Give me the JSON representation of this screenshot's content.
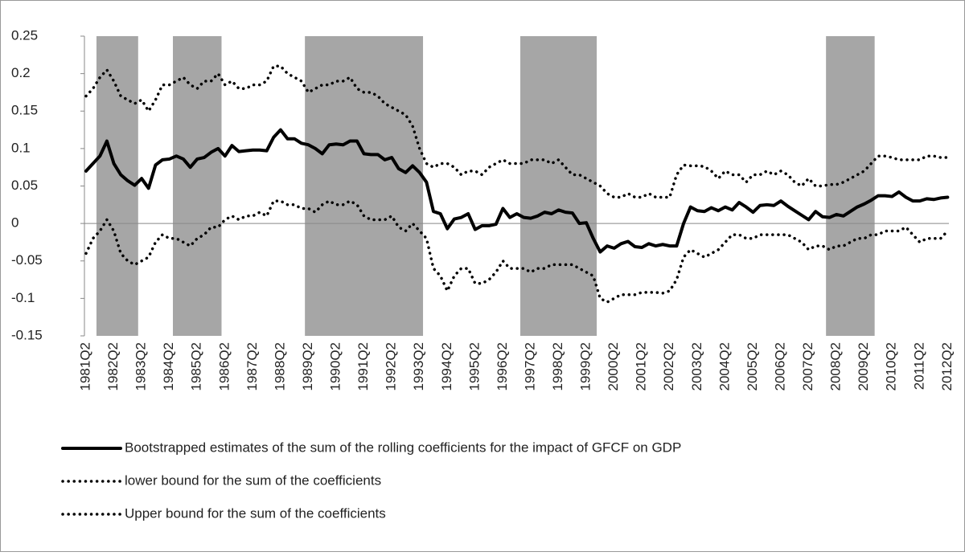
{
  "chart_data": {
    "type": "line",
    "categories": [
      "1981Q2",
      null,
      null,
      null,
      "1982Q2",
      null,
      null,
      null,
      "1983Q2",
      null,
      null,
      null,
      "1984Q2",
      null,
      null,
      null,
      "1985Q2",
      null,
      null,
      null,
      "1986Q2",
      null,
      null,
      null,
      "1987Q2",
      null,
      null,
      null,
      "1988Q2",
      null,
      null,
      null,
      "1989Q2",
      null,
      null,
      null,
      "1990Q2",
      null,
      null,
      null,
      "1991Q2",
      null,
      null,
      null,
      "1992Q2",
      null,
      null,
      null,
      "1993Q2",
      null,
      null,
      null,
      "1994Q2",
      null,
      null,
      null,
      "1995Q2",
      null,
      null,
      null,
      "1996Q2",
      null,
      null,
      null,
      "1997Q2",
      null,
      null,
      null,
      "1998Q2",
      null,
      null,
      null,
      "1999Q2",
      null,
      null,
      null,
      "2000Q2",
      null,
      null,
      null,
      "2001Q2",
      null,
      null,
      null,
      "2002Q2",
      null,
      null,
      null,
      "2003Q2",
      null,
      null,
      null,
      "2004Q2",
      null,
      null,
      null,
      "2005Q2",
      null,
      null,
      null,
      "2006Q2",
      null,
      null,
      null,
      "2007Q2",
      null,
      null,
      null,
      "2008Q2",
      null,
      null,
      null,
      "2009Q2",
      null,
      null,
      null,
      "2010Q2",
      null,
      null,
      null,
      "2011Q2",
      null,
      null,
      null,
      "2012Q2"
    ],
    "series": [
      {
        "name": "Bootstrapped estimates of the sum of the rolling coefficients for the impact of GFCF on GDP",
        "color": "#000000",
        "style": "solid",
        "values": [
          0.07,
          0.08,
          0.09,
          0.11,
          0.08,
          0.065,
          0.057,
          0.051,
          0.06,
          0.047,
          0.078,
          0.085,
          0.086,
          0.09,
          0.086,
          0.075,
          0.086,
          0.088,
          0.095,
          0.1,
          0.09,
          0.104,
          0.096,
          0.097,
          0.098,
          0.098,
          0.097,
          0.115,
          0.125,
          0.113,
          0.113,
          0.107,
          0.105,
          0.1,
          0.093,
          0.105,
          0.106,
          0.105,
          0.11,
          0.11,
          0.093,
          0.092,
          0.092,
          0.085,
          0.088,
          0.073,
          0.068,
          0.077,
          0.068,
          0.055,
          0.016,
          0.013,
          -0.007,
          0.006,
          0.008,
          0.013,
          -0.008,
          -0.003,
          -0.003,
          -0.001,
          0.02,
          0.008,
          0.013,
          0.008,
          0.007,
          0.01,
          0.015,
          0.013,
          0.018,
          0.015,
          0.014,
          0,
          0.001,
          -0.02,
          -0.038,
          -0.03,
          -0.033,
          -0.027,
          -0.024,
          -0.031,
          -0.032,
          -0.027,
          -0.03,
          -0.028,
          -0.03,
          -0.03,
          0,
          0.022,
          0.017,
          0.016,
          0.021,
          0.017,
          0.022,
          0.018,
          0.028,
          0.022,
          0.015,
          0.024,
          0.025,
          0.024,
          0.03,
          0.023,
          0.017,
          0.011,
          0.005,
          0.016,
          0.009,
          0.008,
          0.012,
          0.01,
          0.016,
          0.022,
          0.026,
          0.031,
          0.037,
          0.037,
          0.036,
          0.042,
          0.035,
          0.03,
          0.03,
          0.033,
          0.032,
          0.034,
          0.035
        ]
      },
      {
        "name": "lower bound for the sum of the coefficients",
        "color": "#000000",
        "style": "dotted",
        "values": [
          -0.04,
          -0.02,
          -0.01,
          0.005,
          -0.01,
          -0.04,
          -0.05,
          -0.055,
          -0.05,
          -0.045,
          -0.025,
          -0.015,
          -0.02,
          -0.02,
          -0.025,
          -0.03,
          -0.02,
          -0.015,
          -0.005,
          -0.005,
          0.005,
          0.01,
          0.005,
          0.01,
          0.01,
          0.015,
          0.01,
          0.03,
          0.03,
          0.025,
          0.025,
          0.02,
          0.02,
          0.015,
          0.025,
          0.03,
          0.025,
          0.025,
          0.03,
          0.025,
          0.01,
          0.005,
          0.005,
          0.005,
          0.01,
          -0.005,
          -0.01,
          0,
          -0.01,
          -0.02,
          -0.06,
          -0.07,
          -0.09,
          -0.07,
          -0.06,
          -0.06,
          -0.08,
          -0.08,
          -0.075,
          -0.065,
          -0.05,
          -0.06,
          -0.06,
          -0.06,
          -0.065,
          -0.06,
          -0.06,
          -0.055,
          -0.055,
          -0.055,
          -0.055,
          -0.06,
          -0.065,
          -0.07,
          -0.1,
          -0.105,
          -0.1,
          -0.095,
          -0.095,
          -0.095,
          -0.092,
          -0.092,
          -0.092,
          -0.093,
          -0.09,
          -0.075,
          -0.045,
          -0.035,
          -0.04,
          -0.045,
          -0.04,
          -0.035,
          -0.025,
          -0.015,
          -0.015,
          -0.02,
          -0.02,
          -0.015,
          -0.015,
          -0.015,
          -0.015,
          -0.015,
          -0.02,
          -0.025,
          -0.035,
          -0.03,
          -0.03,
          -0.035,
          -0.03,
          -0.03,
          -0.025,
          -0.02,
          -0.02,
          -0.015,
          -0.015,
          -0.01,
          -0.01,
          -0.01,
          -0.005,
          -0.015,
          -0.025,
          -0.02,
          -0.02,
          -0.02,
          -0.01
        ]
      },
      {
        "name": "Upper bound for the sum of the coefficients",
        "color": "#000000",
        "style": "dotted",
        "values": [
          0.17,
          0.18,
          0.195,
          0.205,
          0.19,
          0.17,
          0.165,
          0.16,
          0.165,
          0.15,
          0.165,
          0.185,
          0.185,
          0.19,
          0.195,
          0.185,
          0.18,
          0.19,
          0.19,
          0.2,
          0.185,
          0.19,
          0.18,
          0.18,
          0.185,
          0.185,
          0.19,
          0.21,
          0.21,
          0.2,
          0.195,
          0.19,
          0.175,
          0.18,
          0.185,
          0.185,
          0.19,
          0.19,
          0.195,
          0.18,
          0.175,
          0.175,
          0.17,
          0.16,
          0.155,
          0.15,
          0.145,
          0.13,
          0.1,
          0.08,
          0.075,
          0.08,
          0.08,
          0.075,
          0.065,
          0.07,
          0.07,
          0.065,
          0.075,
          0.08,
          0.085,
          0.08,
          0.08,
          0.08,
          0.085,
          0.085,
          0.085,
          0.08,
          0.085,
          0.075,
          0.065,
          0.065,
          0.06,
          0.055,
          0.05,
          0.04,
          0.035,
          0.035,
          0.04,
          0.035,
          0.035,
          0.04,
          0.035,
          0.035,
          0.035,
          0.065,
          0.078,
          0.077,
          0.077,
          0.076,
          0.07,
          0.06,
          0.07,
          0.065,
          0.065,
          0.055,
          0.065,
          0.065,
          0.07,
          0.065,
          0.07,
          0.065,
          0.055,
          0.05,
          0.06,
          0.05,
          0.05,
          0.052,
          0.052,
          0.055,
          0.06,
          0.065,
          0.07,
          0.08,
          0.09,
          0.09,
          0.088,
          0.085,
          0.085,
          0.085,
          0.085,
          0.09,
          0.09,
          0.088,
          0.088
        ]
      }
    ],
    "shaded_spans": [
      [
        2,
        7
      ],
      [
        13,
        19
      ],
      [
        32,
        48
      ],
      [
        63,
        73
      ],
      [
        107,
        113
      ]
    ],
    "shade_color": "#a6a6a6",
    "ylim": [
      -0.15,
      0.25
    ],
    "yticks": [
      0.25,
      0.2,
      0.15,
      0.1,
      0.05,
      0,
      -0.05,
      -0.1,
      -0.15
    ],
    "legend": "bottom"
  }
}
